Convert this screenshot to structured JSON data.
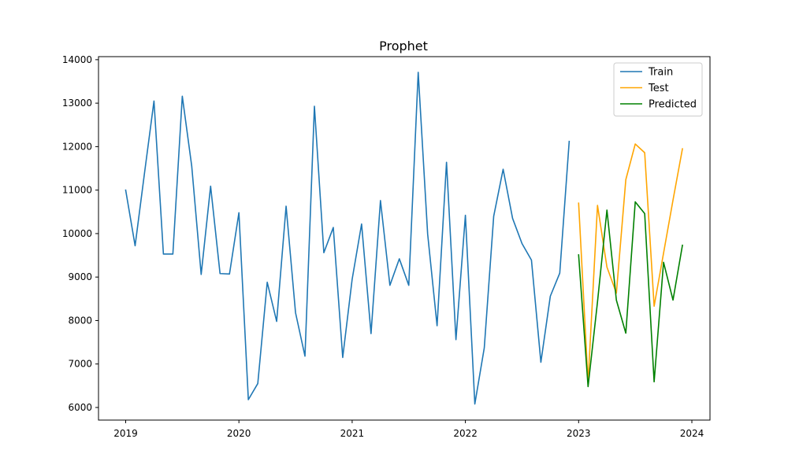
{
  "chart_data": {
    "type": "line",
    "title": "Prophet",
    "xlabel": "",
    "ylabel": "",
    "xlim": [
      2018.76,
      2024.16
    ],
    "ylim": [
      5710,
      14070
    ],
    "x_ticks": [
      2019,
      2020,
      2021,
      2022,
      2023,
      2024
    ],
    "x_tick_labels": [
      "2019",
      "2020",
      "2021",
      "2022",
      "2023",
      "2024"
    ],
    "y_ticks": [
      6000,
      7000,
      8000,
      9000,
      10000,
      11000,
      12000,
      13000,
      14000
    ],
    "y_tick_labels": [
      "6000",
      "7000",
      "8000",
      "9000",
      "10000",
      "11000",
      "12000",
      "13000",
      "14000"
    ],
    "legend_position": "top-right",
    "grid": false,
    "series": [
      {
        "name": "Train",
        "color": "#1f77b4",
        "start": 2019,
        "step": "monthly",
        "values": [
          11000,
          9720,
          11400,
          13050,
          9530,
          9530,
          13160,
          11550,
          9060,
          11090,
          9080,
          9070,
          10480,
          6180,
          6550,
          8880,
          7980,
          10630,
          8180,
          7180,
          12930,
          9560,
          10140,
          7150,
          8950,
          10220,
          7700,
          10760,
          8810,
          9420,
          8810,
          13710,
          9990,
          7880,
          11640,
          7560,
          10420,
          6080,
          7370,
          10400,
          11480,
          10350,
          9770,
          9390,
          7040,
          8560,
          9090,
          12120
        ]
      },
      {
        "name": "Test",
        "color": "#ffa500",
        "start": 2023,
        "step": "monthly",
        "values": [
          10700,
          6580,
          10650,
          9230,
          8630,
          11240,
          12060,
          11860,
          8330,
          9550,
          10770,
          11950
        ]
      },
      {
        "name": "Predicted",
        "color": "#008000",
        "start": 2023,
        "step": "monthly",
        "values": [
          9510,
          6480,
          8430,
          10540,
          8470,
          7710,
          10730,
          10460,
          6590,
          9340,
          8470,
          9730
        ]
      }
    ]
  }
}
